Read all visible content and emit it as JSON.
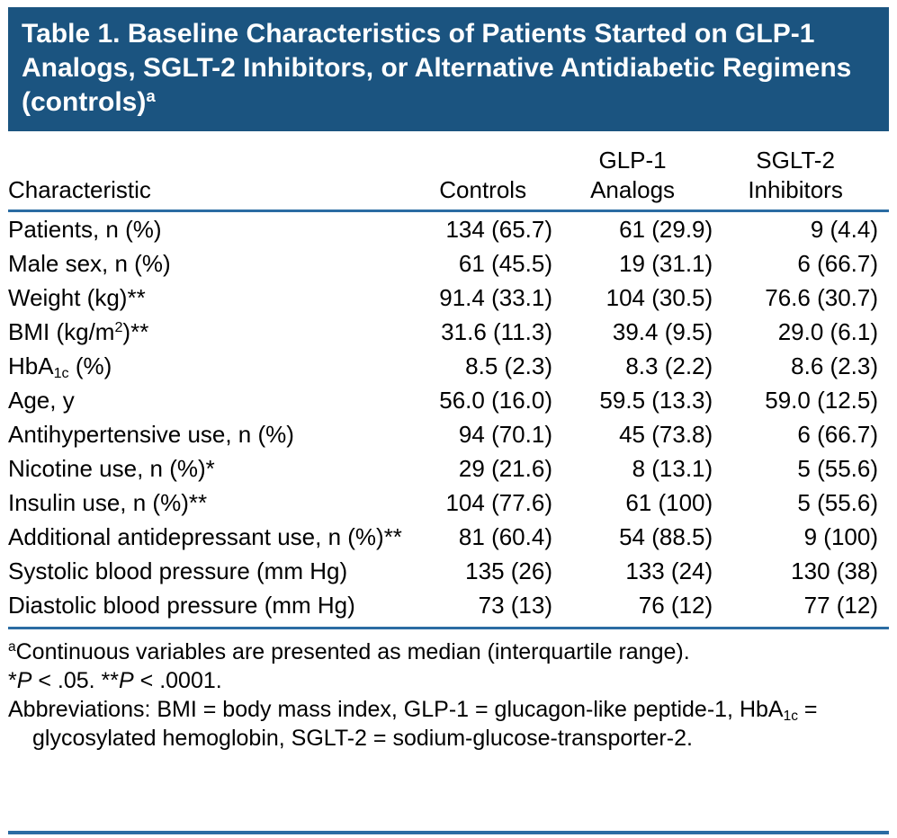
{
  "title": "Table 1. Baseline Characteristics of Patients Started on GLP-1 Analogs, SGLT-2 Inhibitors, or Alternative Antidiabetic Regimens (controls)^a^",
  "colors": {
    "banner": "#1B5480",
    "rule": "#2B6CA3",
    "text": "#000000"
  },
  "table": {
    "columns": [
      {
        "line1": "",
        "line2": "Characteristic"
      },
      {
        "line1": "",
        "line2": "Controls"
      },
      {
        "line1": "GLP-1",
        "line2": "Analogs"
      },
      {
        "line1": "SGLT-2",
        "line2": "Inhibitors"
      }
    ],
    "rows": [
      {
        "label": "Patients, n (%)",
        "values": [
          "134 (65.7)",
          "61 (29.9)",
          "9 (4.4)"
        ]
      },
      {
        "label": "Male sex, n (%)",
        "values": [
          "61 (45.5)",
          "19 (31.1)",
          "6 (66.7)"
        ]
      },
      {
        "label": "Weight (kg)**",
        "values": [
          "91.4 (33.1)",
          "104 (30.5)",
          "76.6 (30.7)"
        ]
      },
      {
        "label": "BMI (kg/m^2^)**",
        "values": [
          "31.6 (11.3)",
          "39.4 (9.5)",
          "29.0 (6.1)"
        ]
      },
      {
        "label": "HbA~1c~ (%)",
        "values": [
          "8.5 (2.3)",
          "8.3 (2.2)",
          "8.6 (2.3)"
        ]
      },
      {
        "label": "Age, y",
        "values": [
          "56.0 (16.0)",
          "59.5 (13.3)",
          "59.0 (12.5)"
        ]
      },
      {
        "label": "Antihypertensive use, n (%)",
        "values": [
          "94 (70.1)",
          "45 (73.8)",
          "6 (66.7)"
        ]
      },
      {
        "label": "Nicotine use, n (%)*",
        "values": [
          "29 (21.6)",
          "8 (13.1)",
          "5 (55.6)"
        ]
      },
      {
        "label": "Insulin use, n (%)**",
        "values": [
          "104 (77.6)",
          "61 (100)",
          "5 (55.6)"
        ]
      },
      {
        "label": "Additional antidepressant use, n (%)**",
        "values": [
          "81 (60.4)",
          "54 (88.5)",
          "9 (100)"
        ]
      },
      {
        "label": "Systolic blood pressure (mm Hg)",
        "values": [
          "135 (26)",
          "133 (24)",
          "130 (38)"
        ]
      },
      {
        "label": "Diastolic blood pressure (mm Hg)",
        "values": [
          "73 (13)",
          "76 (12)",
          "77 (12)"
        ]
      }
    ]
  },
  "footnotes": [
    "^a^Continuous variables are presented as median (interquartile range).",
    "*//P// < .05. **//P// < .0001.",
    "Abbreviations: BMI = body mass index, GLP-1 = glucagon-like peptide-1, HbA~1c~ = glycosylated hemoglobin, SGLT-2 = sodium-glucose-transporter-2."
  ]
}
